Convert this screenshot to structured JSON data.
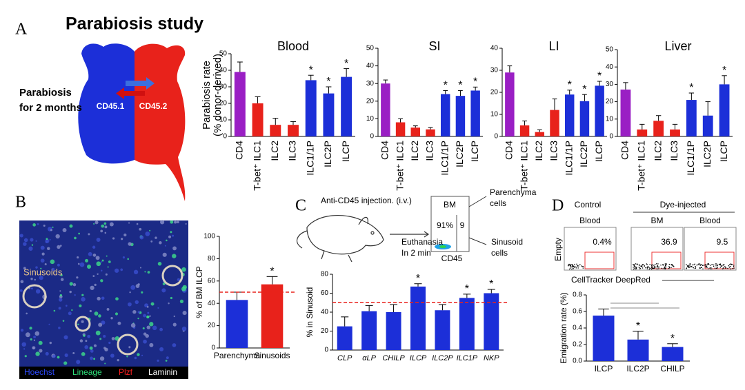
{
  "panels": {
    "a": {
      "letter": "A",
      "title": "Parabiosis study",
      "caption": [
        "Parabiosis",
        "for 2 months"
      ],
      "left_mouse": "CD45.1",
      "right_mouse": "CD45.2"
    },
    "b": {
      "letter": "B",
      "image_label": "Sinusoids",
      "stains": [
        "Hoechst",
        "Lineage",
        "Plzf",
        "Laminin"
      ]
    },
    "c": {
      "letter": "C",
      "injection": "Anti-CD45 injection. (i.v.)",
      "gate_title": "BM",
      "gate_left": "91%",
      "gate_right": "9",
      "gate_axis": "CD45",
      "euthanasia": [
        "Euthanasia",
        "In 2 min"
      ],
      "parenchyma": [
        "Parenchyma",
        "cells"
      ],
      "sinusoid": [
        "Sinusoid",
        "cells"
      ]
    },
    "d": {
      "letter": "D",
      "control": "Control",
      "dye": "Dye-injected",
      "plots": [
        {
          "title": "Blood",
          "gate": "0.4%"
        },
        {
          "title": "BM",
          "gate": "36.9"
        },
        {
          "title": "Blood",
          "gate": "9.5"
        }
      ],
      "y_axis": "Empty",
      "x_axis": "CellTracker DeepRed"
    }
  },
  "chart_data": [
    {
      "type": "bar",
      "title": "Blood",
      "y_label": [
        "Parabiosis rate",
        "(% donor-derived)"
      ],
      "categories": [
        "CD4",
        "T-bet⁺ ILC1",
        "ILC2",
        "ILC3",
        "ILC1/1P",
        "ILC2P",
        "ILCP"
      ],
      "values": [
        39,
        20,
        7,
        7,
        34,
        26,
        36
      ],
      "errors": [
        6,
        4,
        4,
        2,
        3,
        4,
        5
      ],
      "colors": [
        "#9a1fc4",
        "#e8221b",
        "#e8221b",
        "#e8221b",
        "#1c2fd8",
        "#1c2fd8",
        "#1c2fd8"
      ],
      "significance": [
        null,
        null,
        null,
        null,
        "*",
        "*",
        "*"
      ],
      "ylim": [
        0,
        50
      ],
      "yticks": [
        0,
        10,
        20,
        30,
        40,
        50
      ]
    },
    {
      "type": "bar",
      "title": "SI",
      "categories": [
        "CD4",
        "T-bet⁺ ILC1",
        "ILC2",
        "ILC3",
        "ILC1/1P",
        "ILC2P",
        "ILCP"
      ],
      "values": [
        30,
        8,
        5,
        4,
        24,
        23,
        26
      ],
      "errors": [
        2,
        2,
        1,
        1,
        2,
        3,
        2
      ],
      "colors": [
        "#9a1fc4",
        "#e8221b",
        "#e8221b",
        "#e8221b",
        "#1c2fd8",
        "#1c2fd8",
        "#1c2fd8"
      ],
      "significance": [
        null,
        null,
        null,
        null,
        "*",
        "*",
        "*"
      ],
      "ylim": [
        0,
        50
      ],
      "yticks": [
        0,
        10,
        20,
        30,
        40,
        50
      ]
    },
    {
      "type": "bar",
      "title": "LI",
      "categories": [
        "CD4",
        "T-bet⁺ ILC1",
        "ILC2",
        "ILC3",
        "ILC1/1P",
        "ILC2P",
        "ILCP"
      ],
      "values": [
        29,
        5,
        2,
        12,
        19,
        16,
        23
      ],
      "errors": [
        3,
        2,
        1,
        5,
        2,
        3,
        2
      ],
      "colors": [
        "#9a1fc4",
        "#e8221b",
        "#e8221b",
        "#e8221b",
        "#1c2fd8",
        "#1c2fd8",
        "#1c2fd8"
      ],
      "significance": [
        null,
        null,
        null,
        null,
        "*",
        "*",
        "*"
      ],
      "ylim": [
        0,
        40
      ],
      "yticks": [
        0,
        10,
        20,
        30,
        40
      ]
    },
    {
      "type": "bar",
      "title": "Liver",
      "categories": [
        "CD4",
        "T-bet⁺ ILC1",
        "ILC2",
        "ILC3",
        "ILC1/1P",
        "ILC2P",
        "ILCP"
      ],
      "values": [
        27,
        4,
        9,
        4,
        21,
        12,
        30
      ],
      "errors": [
        4,
        3,
        3,
        3,
        4,
        8,
        5
      ],
      "colors": [
        "#9a1fc4",
        "#e8221b",
        "#e8221b",
        "#e8221b",
        "#1c2fd8",
        "#1c2fd8",
        "#1c2fd8"
      ],
      "significance": [
        null,
        null,
        null,
        null,
        "*",
        null,
        "*"
      ],
      "ylim": [
        0,
        50
      ],
      "yticks": [
        0,
        10,
        20,
        30,
        40,
        50
      ]
    },
    {
      "type": "bar",
      "y_label": [
        "% of BM ILCP"
      ],
      "categories": [
        "Parenchyma",
        "Sinusoids"
      ],
      "values": [
        43,
        57
      ],
      "errors": [
        7,
        7
      ],
      "colors": [
        "#1c2fd8",
        "#e8221b"
      ],
      "significance": [
        null,
        "*"
      ],
      "reference_line": 50,
      "ylim": [
        0,
        100
      ],
      "yticks": [
        0,
        20,
        40,
        60,
        80,
        100
      ]
    },
    {
      "type": "bar",
      "y_label": [
        "% in Sinusoid"
      ],
      "categories": [
        "CLP",
        "αLP",
        "CHILP",
        "ILCP",
        "ILC2P",
        "ILC1P",
        "NKP"
      ],
      "values": [
        25,
        41,
        40,
        67,
        42,
        55,
        60
      ],
      "errors": [
        10,
        6,
        8,
        3,
        6,
        4,
        4
      ],
      "colors": [
        "#1c2fd8",
        "#1c2fd8",
        "#1c2fd8",
        "#1c2fd8",
        "#1c2fd8",
        "#1c2fd8",
        "#1c2fd8"
      ],
      "significance": [
        null,
        null,
        null,
        "*",
        null,
        "*",
        "*"
      ],
      "reference_line": 50,
      "ylim": [
        0,
        80
      ],
      "yticks": [
        0,
        20,
        40,
        60,
        80
      ]
    },
    {
      "type": "bar",
      "y_label": [
        "Emigration rate (%)"
      ],
      "categories": [
        "ILCP",
        "ILC2P",
        "CHILP"
      ],
      "values": [
        0.55,
        0.26,
        0.17
      ],
      "errors": [
        0.08,
        0.1,
        0.04
      ],
      "colors": [
        "#1c2fd8",
        "#1c2fd8",
        "#1c2fd8"
      ],
      "significance": [
        null,
        "*",
        "*"
      ],
      "ylim": [
        0,
        0.8
      ],
      "yticks": [
        {
          "value": 0,
          "label": "0.0"
        },
        0.2,
        0.4,
        0.6,
        0.8
      ]
    }
  ]
}
